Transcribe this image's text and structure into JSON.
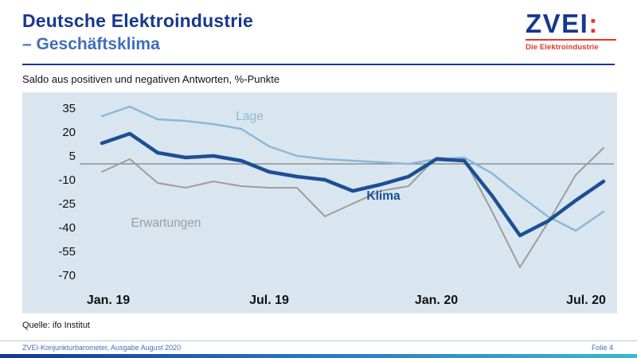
{
  "header": {
    "title_line1": "Deutsche Elektroindustrie",
    "title_line2": "– Geschäftsklima",
    "logo": {
      "name": "ZVEI",
      "colon": ":",
      "tagline": "Die Elektroindustrie"
    }
  },
  "subtitle": "Saldo aus positiven und negativen Antworten, %-Punkte",
  "source": "Quelle: ifo Institut",
  "footer": {
    "left": "ZVEI-Konjunkturbarometer, Ausgabe August 2020",
    "right": "Folie 4"
  },
  "colors": {
    "title_blue": "#17388e",
    "subtitle_blue": "#3e6fbe",
    "zvei_red": "#e5352b",
    "panel_background": "#d9e6f0",
    "lage_line": "#8cb8d6",
    "klima_line": "#1c4f94",
    "erwartungen_line": "#9d9d9d"
  },
  "chart_data": {
    "type": "line",
    "title": "Deutsche Elektroindustrie – Geschäftsklima",
    "subtitle": "Saldo aus positiven und negativen Antworten, %-Punkte",
    "x_description": "19 monthly points from Jan. 19 to Jul. 20",
    "ylim": [
      -75,
      40
    ],
    "y_ticks": [
      35,
      20,
      5,
      -10,
      -25,
      -40,
      -55,
      -70
    ],
    "zero_line": true,
    "grid": false,
    "plot_bg": "#d9e6f0",
    "x_tick_marks": [
      {
        "label": "Jan. 19",
        "index": 0,
        "dx": 8
      },
      {
        "label": "Jul. 19",
        "index": 6,
        "dx": 0
      },
      {
        "label": "Jan. 20",
        "index": 12,
        "dx": 0
      },
      {
        "label": "Jul. 20",
        "index": 18,
        "dx": -22
      }
    ],
    "series": [
      {
        "name": "Erwartungen",
        "color": "#9d9d9d",
        "width": 2,
        "values": [
          -5,
          3,
          -12,
          -15,
          -11,
          -14,
          -15,
          -15,
          -33,
          -25,
          -17,
          -14,
          4,
          3,
          -30,
          -65,
          -37,
          -7,
          10
        ]
      },
      {
        "name": "Lage",
        "color": "#8cb8d6",
        "width": 2.5,
        "values": [
          30,
          36,
          28,
          27,
          25,
          22,
          11,
          5,
          3,
          2,
          1,
          0,
          3,
          4,
          -6,
          -20,
          -33,
          -42,
          -30
        ]
      },
      {
        "name": "Klima",
        "color": "#1c4f94",
        "width": 4.5,
        "values": [
          13,
          19,
          7,
          4,
          5,
          2,
          -5,
          -8,
          -10,
          -17,
          -13,
          -8,
          3,
          2,
          -20,
          -45,
          -36,
          -23,
          -11
        ]
      }
    ],
    "annotations": [
      {
        "text": "Lage",
        "index": 5.3,
        "value": 30,
        "color": "#8cb8d6",
        "bold": false
      },
      {
        "text": "Klima",
        "index": 10.1,
        "value": -20,
        "color": "#1c4f94",
        "bold": true
      },
      {
        "text": "Erwartungen",
        "index": 2.3,
        "value": -37,
        "color": "#9d9d9d",
        "bold": false
      }
    ]
  }
}
